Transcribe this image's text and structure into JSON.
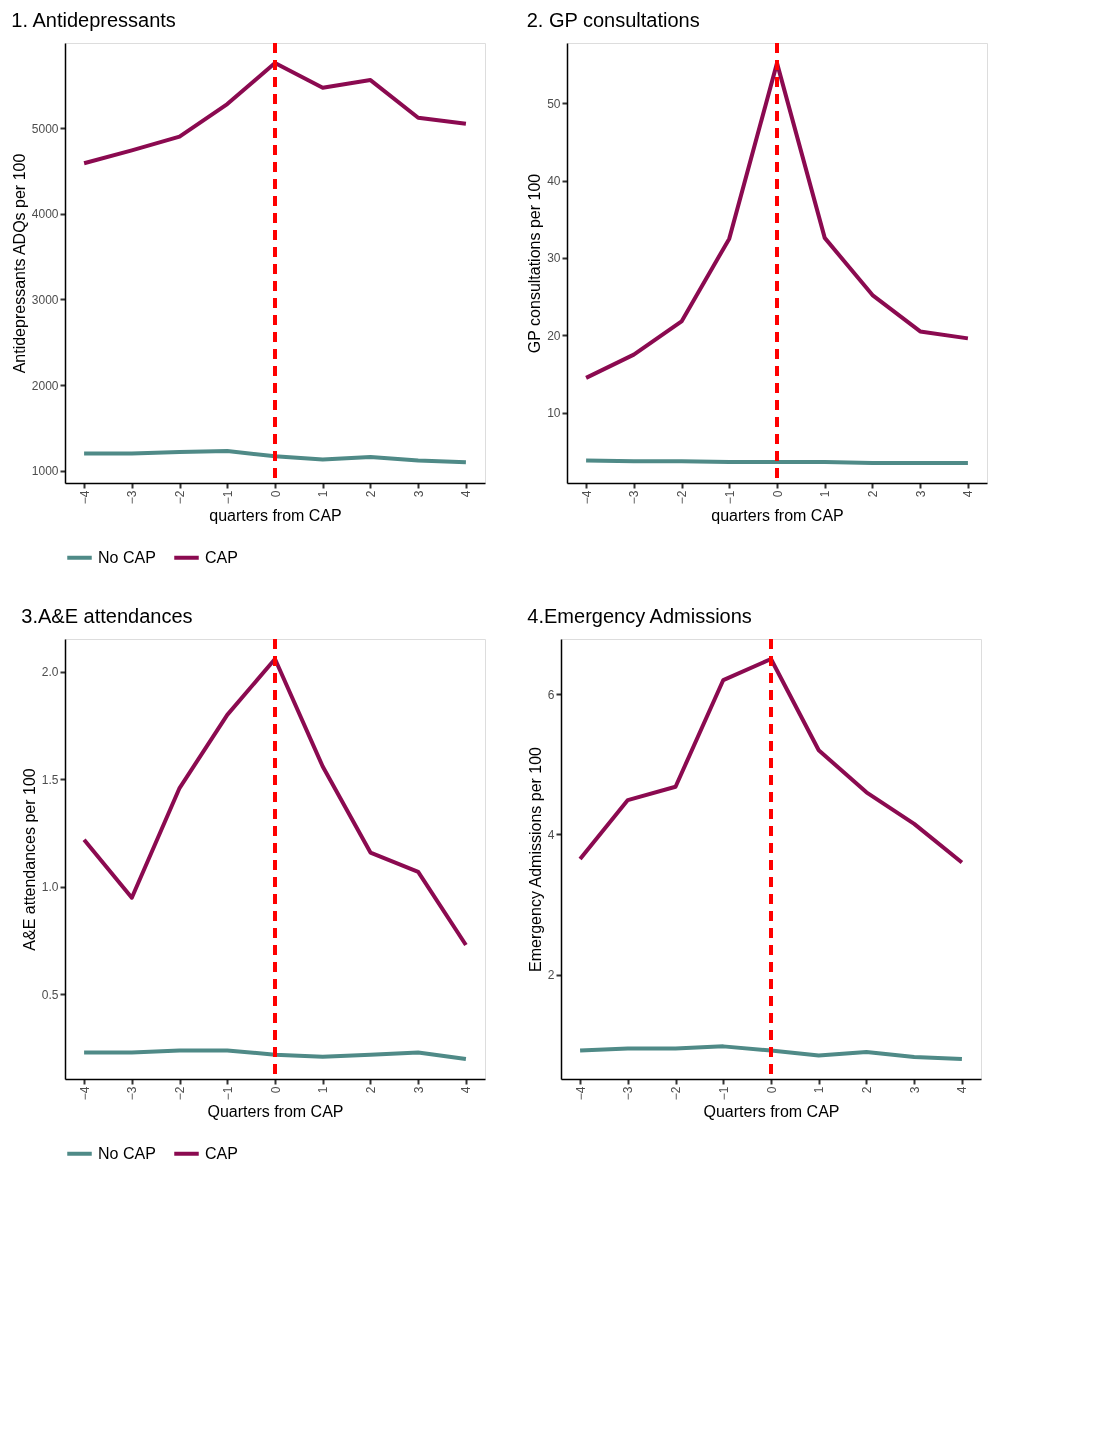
{
  "chart_data": [
    {
      "type": "line",
      "title": "1. Antidepressants",
      "xlabel": "quarters from CAP",
      "ylabel": "Antidepressants ADQs per 100",
      "x": [
        -4,
        -3,
        -2,
        -1,
        0,
        1,
        2,
        3,
        4
      ],
      "xlim": [
        -4.4,
        4.4
      ],
      "xticks": [
        {
          "value": -4,
          "label": "−4"
        },
        {
          "value": -3,
          "label": "−3"
        },
        {
          "value": -2,
          "label": "−2"
        },
        {
          "value": -1,
          "label": "−1"
        },
        0,
        1,
        2,
        3,
        4
      ],
      "ylim": [
        857,
        5993
      ],
      "yticks": [
        1000,
        2000,
        3000,
        4000,
        5000
      ],
      "grid": false,
      "legend": "bottom",
      "line_style": "solid",
      "marker": "none",
      "series": [
        {
          "name": "No CAP",
          "color": "#4f8a87",
          "values": [
            1200,
            1200,
            1220,
            1230,
            1170,
            1130,
            1160,
            1120,
            1100
          ]
        },
        {
          "name": "CAP",
          "color": "#8b0a50",
          "values": [
            4590,
            4740,
            4900,
            5280,
            5760,
            5470,
            5560,
            5120,
            5050
          ]
        }
      ],
      "ref_lines": [
        {
          "axis": "x",
          "value": 0,
          "color": "#ff0000",
          "line_style": "dashed"
        }
      ]
    },
    {
      "type": "line",
      "title": "2. GP consultations",
      "xlabel": "quarters from CAP",
      "ylabel": "GP consultations per 100",
      "x": [
        -4,
        -3,
        -2,
        -1,
        0,
        1,
        2,
        3,
        4
      ],
      "xlim": [
        -4.4,
        4.4
      ],
      "xticks": [
        {
          "value": -4,
          "label": "−4"
        },
        {
          "value": -3,
          "label": "−3"
        },
        {
          "value": -2,
          "label": "−2"
        },
        {
          "value": -1,
          "label": "−1"
        },
        0,
        1,
        2,
        3,
        4
      ],
      "ylim": [
        0.9,
        57.8
      ],
      "yticks": [
        10,
        20,
        30,
        40,
        50
      ],
      "grid": false,
      "legend": "bottom",
      "line_style": "solid",
      "marker": "none",
      "series": [
        {
          "name": "No CAP",
          "color": "#4f8a87",
          "values": [
            3.8,
            3.7,
            3.7,
            3.6,
            3.6,
            3.6,
            3.5,
            3.5,
            3.5
          ]
        },
        {
          "name": "CAP",
          "color": "#8b0a50",
          "values": [
            14.5,
            17.5,
            21.8,
            32.5,
            55.2,
            32.6,
            25.2,
            20.5,
            19.6
          ]
        }
      ],
      "ref_lines": [
        {
          "axis": "x",
          "value": 0,
          "color": "#ff0000",
          "line_style": "dashed"
        }
      ]
    },
    {
      "type": "line",
      "title": "3.A&E attendances",
      "xlabel": "Quarters from CAP",
      "ylabel": "A&E attendances per 100",
      "x": [
        -4,
        -3,
        -2,
        -1,
        0,
        1,
        2,
        3,
        4
      ],
      "xlim": [
        -4.4,
        4.4
      ],
      "xticks": [
        {
          "value": -4,
          "label": "−4"
        },
        {
          "value": -3,
          "label": "−3"
        },
        {
          "value": -2,
          "label": "−2"
        },
        {
          "value": -1,
          "label": "−1"
        },
        0,
        1,
        2,
        3,
        4
      ],
      "ylim": [
        0.107,
        2.153
      ],
      "yticks": [
        0.5,
        {
          "value": 1,
          "label": "1.0"
        },
        1.5,
        {
          "value": 2,
          "label": "2.0"
        }
      ],
      "grid": false,
      "legend": "bottom",
      "line_style": "solid",
      "marker": "none",
      "series": [
        {
          "name": "No CAP",
          "color": "#4f8a87",
          "values": [
            0.23,
            0.23,
            0.24,
            0.24,
            0.22,
            0.21,
            0.22,
            0.23,
            0.2
          ]
        },
        {
          "name": "CAP",
          "color": "#8b0a50",
          "values": [
            1.22,
            0.95,
            1.46,
            1.8,
            2.06,
            1.56,
            1.16,
            1.07,
            0.73
          ]
        }
      ],
      "ref_lines": [
        {
          "axis": "x",
          "value": 0,
          "color": "#ff0000",
          "line_style": "dashed"
        }
      ]
    },
    {
      "type": "line",
      "title": "4.Emergency Admissions",
      "xlabel": "Quarters from CAP",
      "ylabel": "Emergency Admissions per 100",
      "x": [
        -4,
        -3,
        -2,
        -1,
        0,
        1,
        2,
        3,
        4
      ],
      "xlim": [
        -4.4,
        4.4
      ],
      "xticks": [
        {
          "value": -4,
          "label": "−4"
        },
        {
          "value": -3,
          "label": "−3"
        },
        {
          "value": -2,
          "label": "−2"
        },
        {
          "value": -1,
          "label": "−1"
        },
        0,
        1,
        2,
        3,
        4
      ],
      "ylim": [
        0.515,
        6.785
      ],
      "yticks": [
        2,
        4,
        6
      ],
      "grid": false,
      "legend": "bottom",
      "line_style": "solid",
      "marker": "none",
      "series": [
        {
          "name": "No CAP",
          "color": "#4f8a87",
          "values": [
            0.92,
            0.95,
            0.95,
            0.98,
            0.92,
            0.85,
            0.9,
            0.83,
            0.8
          ]
        },
        {
          "name": "CAP",
          "color": "#8b0a50",
          "values": [
            3.65,
            4.49,
            4.68,
            6.2,
            6.5,
            5.2,
            4.6,
            4.15,
            3.6
          ]
        }
      ],
      "ref_lines": [
        {
          "axis": "x",
          "value": 0,
          "color": "#ff0000",
          "line_style": "dashed"
        }
      ]
    }
  ]
}
